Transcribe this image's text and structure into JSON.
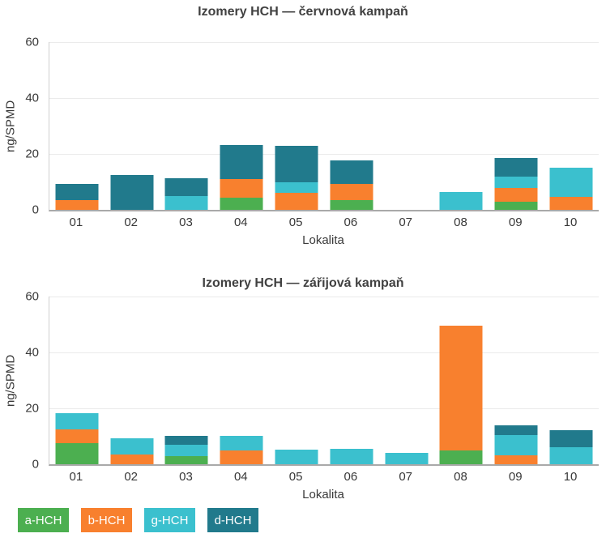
{
  "legend": {
    "items": [
      {
        "label": "a-HCH",
        "color": "#4caf50"
      },
      {
        "label": "b-HCH",
        "color": "#f8802e"
      },
      {
        "label": "g-HCH",
        "color": "#3bc0ce"
      },
      {
        "label": "d-HCH",
        "color": "#217a8c"
      }
    ]
  },
  "chart_data": [
    {
      "type": "bar",
      "stacked": true,
      "title": "Izomery HCH — červnová kampaň",
      "xlabel": "Lokalita",
      "ylabel": "ng/SPMD",
      "ylim": [
        0,
        60
      ],
      "yticks": [
        0,
        20,
        40,
        60
      ],
      "grid": true,
      "legend_position": "bottom",
      "categories": [
        "01",
        "02",
        "03",
        "04",
        "05",
        "06",
        "07",
        "08",
        "09",
        "10"
      ],
      "series": [
        {
          "name": "a-HCH",
          "color": "#4caf50",
          "values": [
            0,
            0,
            0,
            4.4,
            0,
            3.6,
            0,
            0,
            3.0,
            0
          ]
        },
        {
          "name": "b-HCH",
          "color": "#f8802e",
          "values": [
            3.4,
            0,
            0,
            6.5,
            6.0,
            5.8,
            0,
            0,
            4.8,
            4.6
          ]
        },
        {
          "name": "g-HCH",
          "color": "#3bc0ce",
          "values": [
            0,
            0,
            4.9,
            0,
            3.9,
            0,
            0,
            6.4,
            4.0,
            10.4
          ]
        },
        {
          "name": "d-HCH",
          "color": "#217a8c",
          "values": [
            5.8,
            12.4,
            6.4,
            12.3,
            13.1,
            8.4,
            0,
            0,
            6.7,
            0
          ]
        }
      ]
    },
    {
      "type": "bar",
      "stacked": true,
      "title": "Izomery HCH — zářijová kampaň",
      "xlabel": "Lokalita",
      "ylabel": "ng/SPMD",
      "ylim": [
        0,
        60
      ],
      "yticks": [
        0,
        20,
        40,
        60
      ],
      "grid": true,
      "legend_position": "bottom",
      "categories": [
        "01",
        "02",
        "03",
        "04",
        "05",
        "06",
        "07",
        "08",
        "09",
        "10"
      ],
      "series": [
        {
          "name": "a-HCH",
          "color": "#4caf50",
          "values": [
            7.6,
            0,
            2.9,
            0,
            0,
            0,
            0,
            5.0,
            0,
            0
          ]
        },
        {
          "name": "b-HCH",
          "color": "#f8802e",
          "values": [
            4.9,
            3.4,
            0,
            4.8,
            0,
            0,
            0,
            44.5,
            3.3,
            0
          ]
        },
        {
          "name": "g-HCH",
          "color": "#3bc0ce",
          "values": [
            5.9,
            6.0,
            4.2,
            5.4,
            5.3,
            5.4,
            4.2,
            0,
            7.1,
            6.0
          ]
        },
        {
          "name": "d-HCH",
          "color": "#217a8c",
          "values": [
            0,
            0,
            3.0,
            0,
            0,
            0,
            0,
            0,
            3.5,
            6.3
          ]
        }
      ]
    }
  ]
}
